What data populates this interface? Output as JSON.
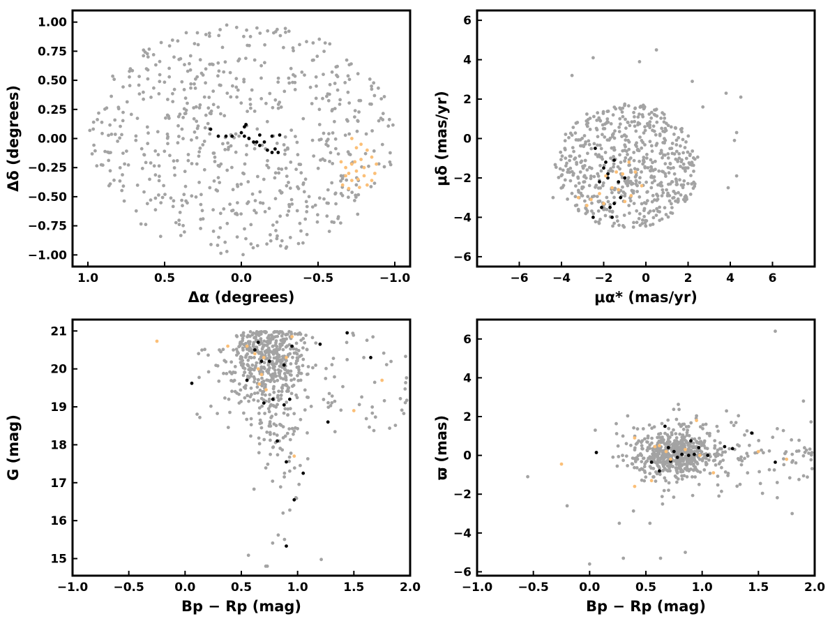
{
  "colors": {
    "field": "#a3a3a3",
    "members": "#000000",
    "highlight": "#fbbf77"
  },
  "chart_data": [
    {
      "type": "scatter",
      "id": "pos",
      "xlabel": "Δα (degrees)",
      "ylabel": "Δδ (degrees)",
      "xlim": [
        1.1,
        -1.1
      ],
      "ylim": [
        -1.1,
        1.1
      ],
      "xticks": [
        1.0,
        0.5,
        0.0,
        -0.5,
        -1.0
      ],
      "xtick_labels": [
        "1.0",
        "0.5",
        "0.0",
        "−0.5",
        "−1.0"
      ],
      "yticks": [
        -1.0,
        -0.75,
        -0.5,
        -0.25,
        0.0,
        0.25,
        0.5,
        0.75,
        1.0
      ],
      "ytick_labels": [
        "−1.00",
        "−0.75",
        "−0.50",
        "−0.25",
        "0.00",
        "0.25",
        "0.50",
        "0.75",
        "1.00"
      ],
      "grid": false,
      "series": [
        {
          "color_key": "field",
          "generator": {
            "kind": "disk",
            "n": 640,
            "cx": 0.0,
            "cy": 0.0,
            "rx": 1.0,
            "ry": 1.0,
            "seed": 11
          },
          "points": []
        },
        {
          "color_key": "members",
          "points": [
            [
              0.2,
              0.08
            ],
            [
              0.15,
              0.02
            ],
            [
              0.1,
              0.02
            ],
            [
              0.06,
              0.02
            ],
            [
              0.0,
              0.05
            ],
            [
              -0.02,
              0.1
            ],
            [
              -0.03,
              0.12
            ],
            [
              -0.05,
              0.0
            ],
            [
              -0.08,
              -0.03
            ],
            [
              -0.1,
              -0.03
            ],
            [
              -0.12,
              -0.06
            ],
            [
              -0.15,
              -0.03
            ],
            [
              -0.17,
              -0.1
            ],
            [
              -0.2,
              -0.12
            ],
            [
              -0.22,
              -0.09
            ],
            [
              -0.24,
              -0.12
            ],
            [
              -0.12,
              0.03
            ],
            [
              -0.2,
              0.02
            ],
            [
              -0.25,
              0.03
            ],
            [
              -0.02,
              0.02
            ]
          ]
        },
        {
          "color_key": "highlight",
          "points": [
            [
              -0.72,
              0.0
            ],
            [
              -0.75,
              -0.08
            ],
            [
              -0.78,
              -0.05
            ],
            [
              -0.82,
              -0.1
            ],
            [
              -0.65,
              -0.2
            ],
            [
              -0.68,
              -0.25
            ],
            [
              -0.72,
              -0.22
            ],
            [
              -0.78,
              -0.18
            ],
            [
              -0.85,
              -0.16
            ],
            [
              -0.88,
              -0.22
            ],
            [
              -0.7,
              -0.3
            ],
            [
              -0.75,
              -0.28
            ],
            [
              -0.8,
              -0.32
            ],
            [
              -0.85,
              -0.36
            ],
            [
              -0.72,
              -0.36
            ],
            [
              -0.66,
              -0.4
            ],
            [
              -0.77,
              -0.42
            ],
            [
              -0.82,
              -0.4
            ],
            [
              -0.7,
              -0.43
            ],
            [
              -0.74,
              -0.2
            ],
            [
              -0.68,
              -0.32
            ],
            [
              -0.87,
              -0.3
            ],
            [
              -0.8,
              -0.25
            ],
            [
              -0.76,
              -0.35
            ]
          ]
        }
      ]
    },
    {
      "type": "scatter",
      "id": "pm",
      "xlabel": "μα* (mas/yr)",
      "ylabel": "μδ (mas/yr)",
      "xlim": [
        -8,
        8
      ],
      "ylim": [
        -6.5,
        6.5
      ],
      "xticks": [
        -6,
        -4,
        -2,
        0,
        2,
        4,
        6
      ],
      "xtick_labels": [
        "−6",
        "−4",
        "−2",
        "0",
        "2",
        "4",
        "6"
      ],
      "yticks": [
        -6,
        -4,
        -2,
        0,
        2,
        4,
        6
      ],
      "ytick_labels": [
        "−6",
        "−4",
        "−2",
        "0",
        "2",
        "4",
        "6"
      ],
      "grid": false,
      "series": [
        {
          "color_key": "field",
          "generator": {
            "kind": "disk",
            "n": 620,
            "cx": -0.9,
            "cy": -1.4,
            "rx": 3.4,
            "ry": 3.2,
            "seed": 23,
            "extra": [
              [
                -2.5,
                4.1
              ],
              [
                0.5,
                4.5
              ],
              [
                2.2,
                2.9
              ],
              [
                3.8,
                2.3
              ],
              [
                4.5,
                2.1
              ],
              [
                4.3,
                -1.9
              ],
              [
                -4.4,
                -3.0
              ],
              [
                -0.3,
                3.9
              ],
              [
                2.7,
                1.6
              ],
              [
                -3.5,
                3.2
              ],
              [
                4.3,
                0.3
              ],
              [
                4.2,
                -0.1
              ],
              [
                3.9,
                -2.5
              ]
            ]
          },
          "points": []
        },
        {
          "color_key": "members",
          "points": [
            [
              -2.4,
              -0.5
            ],
            [
              -2.2,
              -2.2
            ],
            [
              -2.0,
              -1.5
            ],
            [
              -1.9,
              -1.2
            ],
            [
              -1.8,
              -2.0
            ],
            [
              -1.7,
              -3.5
            ],
            [
              -1.6,
              -4.0
            ],
            [
              -1.5,
              -1.1
            ],
            [
              -1.3,
              -2.2
            ],
            [
              -1.2,
              -3.0
            ],
            [
              -1.0,
              -2.0
            ],
            [
              -2.1,
              -3.5
            ],
            [
              -1.5,
              -3.3
            ],
            [
              -2.5,
              -4.0
            ],
            [
              -1.8,
              -1.8
            ]
          ]
        },
        {
          "color_key": "highlight",
          "points": [
            [
              -3.2,
              -3.0
            ],
            [
              -2.8,
              -3.4
            ],
            [
              -2.2,
              -2.8
            ],
            [
              -2.0,
              -3.3
            ],
            [
              -1.6,
              -2.5
            ],
            [
              -1.3,
              -2.6
            ],
            [
              -1.1,
              -1.8
            ],
            [
              -0.8,
              -1.2
            ],
            [
              -0.5,
              -1.7
            ],
            [
              -0.2,
              -2.4
            ],
            [
              -1.4,
              -1.7
            ],
            [
              -2.6,
              -3.1
            ],
            [
              -1.0,
              -3.2
            ],
            [
              -0.7,
              -2.9
            ],
            [
              -1.9,
              -1.9
            ]
          ]
        }
      ]
    },
    {
      "type": "scatter",
      "id": "cmd",
      "xlabel": "Bp − Rp (mag)",
      "ylabel": "G (mag)",
      "xlim": [
        -1.0,
        2.0
      ],
      "ylim": [
        14.55,
        21.3
      ],
      "xticks": [
        -1.0,
        -0.5,
        0.0,
        0.5,
        1.0,
        1.5,
        2.0
      ],
      "xtick_labels": [
        "−1.0",
        "−0.5",
        "0.0",
        "0.5",
        "1.0",
        "1.5",
        "2.0"
      ],
      "yticks": [
        15,
        16,
        17,
        18,
        19,
        20,
        21
      ],
      "ytick_labels": [
        "15",
        "16",
        "17",
        "18",
        "19",
        "20",
        "21"
      ],
      "grid": false,
      "series": [
        {
          "color_key": "field",
          "generator": {
            "kind": "cmd",
            "n": 640,
            "seed": 37
          },
          "points": []
        },
        {
          "color_key": "members",
          "points": [
            [
              0.06,
              19.62
            ],
            [
              0.55,
              19.7
            ],
            [
              0.62,
              20.5
            ],
            [
              0.65,
              20.7
            ],
            [
              0.68,
              20.2
            ],
            [
              0.7,
              19.1
            ],
            [
              0.75,
              20.2
            ],
            [
              0.78,
              19.2
            ],
            [
              0.82,
              18.1
            ],
            [
              0.88,
              19.05
            ],
            [
              0.88,
              20.1
            ],
            [
              0.9,
              17.55
            ],
            [
              0.93,
              19.2
            ],
            [
              0.95,
              20.6
            ],
            [
              0.97,
              16.55
            ],
            [
              1.05,
              17.25
            ],
            [
              1.2,
              20.65
            ],
            [
              1.27,
              18.6
            ],
            [
              1.44,
              20.95
            ],
            [
              1.65,
              20.3
            ],
            [
              0.9,
              15.33
            ]
          ]
        },
        {
          "color_key": "highlight",
          "points": [
            [
              -0.25,
              20.73
            ],
            [
              0.38,
              20.6
            ],
            [
              0.55,
              20.6
            ],
            [
              0.62,
              20.4
            ],
            [
              0.65,
              20.0
            ],
            [
              0.68,
              19.85
            ],
            [
              0.7,
              20.3
            ],
            [
              0.72,
              19.45
            ],
            [
              0.66,
              19.6
            ],
            [
              0.9,
              20.3
            ],
            [
              0.97,
              17.7
            ],
            [
              0.95,
              20.85
            ],
            [
              1.5,
              18.9
            ],
            [
              1.75,
              19.7
            ]
          ]
        }
      ]
    },
    {
      "type": "scatter",
      "id": "plx",
      "xlabel": "Bp − Rp (mag)",
      "ylabel": "ϖ (mas)",
      "xlim": [
        -1.0,
        2.0
      ],
      "ylim": [
        -6.2,
        7.0
      ],
      "xticks": [
        -1.0,
        -0.5,
        0.0,
        0.5,
        1.0,
        1.5,
        2.0
      ],
      "xtick_labels": [
        "−1.0",
        "−0.5",
        "0.0",
        "0.5",
        "1.0",
        "1.5",
        "2.0"
      ],
      "yticks": [
        -6,
        -4,
        -2,
        0,
        2,
        4,
        6
      ],
      "ytick_labels": [
        "−6",
        "−4",
        "−2",
        "0",
        "2",
        "4",
        "6"
      ],
      "grid": false,
      "series": [
        {
          "color_key": "field",
          "generator": {
            "kind": "plx",
            "n": 680,
            "seed": 51,
            "extra": [
              [
                1.65,
                6.4
              ],
              [
                0.0,
                -5.6
              ],
              [
                0.63,
                -5.3
              ],
              [
                0.3,
                -5.3
              ],
              [
                0.85,
                -5.0
              ],
              [
                -0.55,
                -1.1
              ],
              [
                -0.2,
                -2.6
              ],
              [
                0.05,
                1.3
              ],
              [
                1.8,
                -3.0
              ],
              [
                1.9,
                2.8
              ]
            ]
          },
          "points": []
        },
        {
          "color_key": "members",
          "points": [
            [
              0.06,
              0.15
            ],
            [
              0.55,
              -0.35
            ],
            [
              0.62,
              -0.8
            ],
            [
              0.67,
              1.5
            ],
            [
              0.7,
              0.4
            ],
            [
              0.75,
              0.2
            ],
            [
              0.78,
              -0.1
            ],
            [
              0.82,
              0.05
            ],
            [
              0.88,
              0.0
            ],
            [
              0.9,
              0.75
            ],
            [
              0.93,
              0.05
            ],
            [
              0.97,
              0.4
            ],
            [
              1.05,
              0.0
            ],
            [
              1.2,
              0.45
            ],
            [
              1.27,
              0.35
            ],
            [
              1.44,
              1.15
            ],
            [
              1.65,
              -0.35
            ],
            [
              0.72,
              -0.3
            ]
          ]
        },
        {
          "color_key": "highlight",
          "points": [
            [
              -0.25,
              -0.45
            ],
            [
              0.4,
              0.9
            ],
            [
              0.4,
              -1.6
            ],
            [
              0.55,
              -1.3
            ],
            [
              0.62,
              0.5
            ],
            [
              0.68,
              0.2
            ],
            [
              0.72,
              -0.2
            ],
            [
              0.95,
              1.8
            ],
            [
              0.98,
              0.0
            ],
            [
              1.1,
              -0.9
            ],
            [
              1.5,
              0.2
            ],
            [
              1.75,
              -0.2
            ],
            [
              0.58,
              0.45
            ],
            [
              0.85,
              0.3
            ]
          ]
        }
      ]
    }
  ]
}
